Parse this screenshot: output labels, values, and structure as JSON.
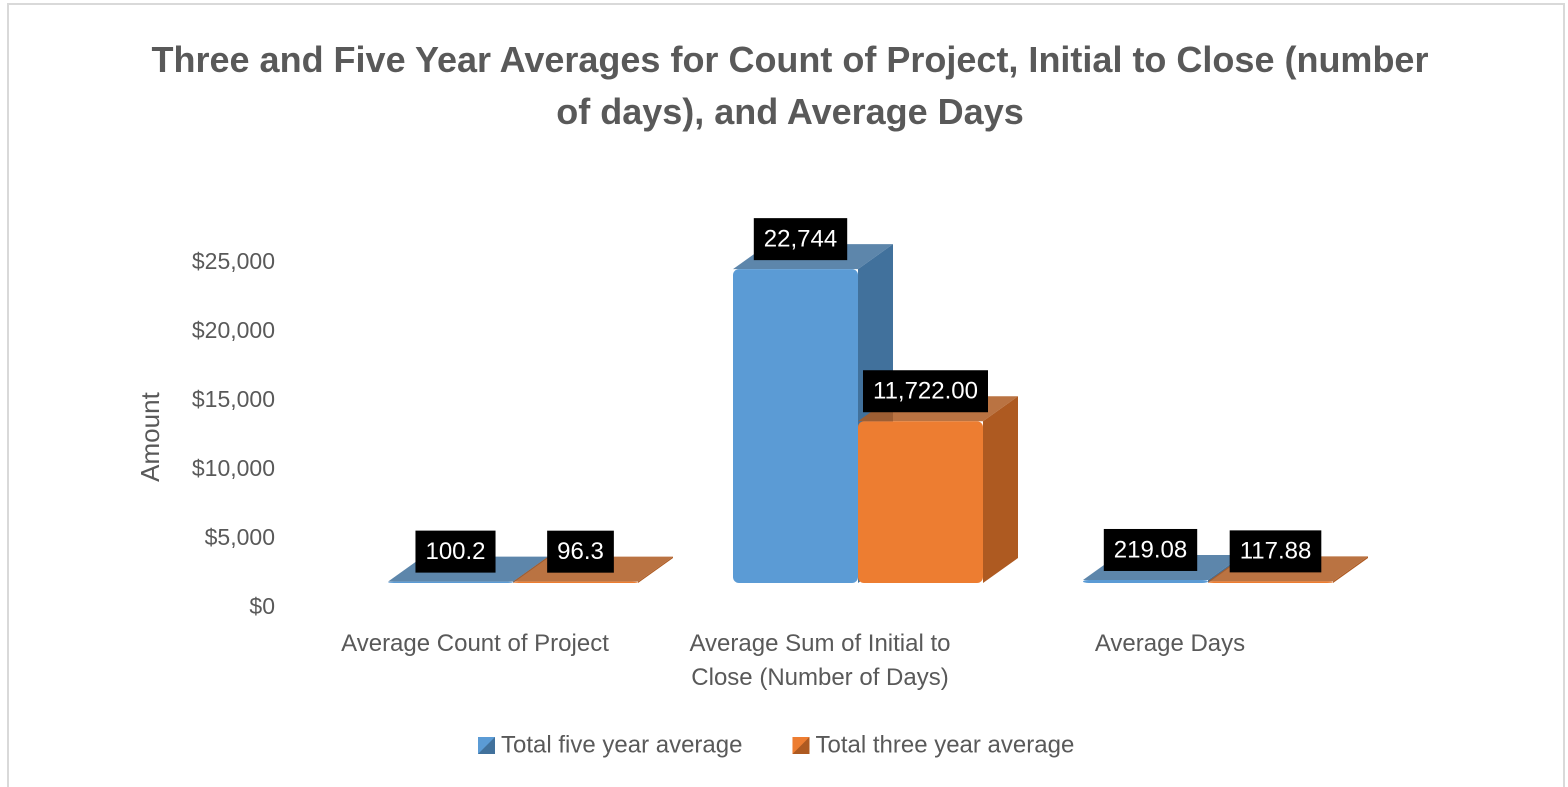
{
  "chart_data": {
    "type": "bar3d",
    "title": "Three and Five Year Averages for Count of Project, Initial to Close (number of days), and Average Days",
    "categories": [
      "Average Count of Project",
      "Average Sum of Initial to Close (Number of Days)",
      "Average Days"
    ],
    "y_label": "Amount",
    "ylim": [
      0,
      25000
    ],
    "yticks": [
      {
        "value": 0,
        "label": "$0"
      },
      {
        "value": 5000,
        "label": "$5,000"
      },
      {
        "value": 10000,
        "label": "$10,000"
      },
      {
        "value": 15000,
        "label": "$15,000"
      },
      {
        "value": 20000,
        "label": "$20,000"
      },
      {
        "value": 25000,
        "label": "$25,000"
      }
    ],
    "legend": "bottom",
    "series": [
      {
        "name": "Total five year average",
        "color": "#5b9bd5",
        "side_color": "#41719c",
        "values": [
          100.2,
          22744,
          219.08
        ],
        "value_labels": [
          "100.2",
          "22,744",
          "219.08"
        ]
      },
      {
        "name": "Total three year average",
        "color": "#ed7d31",
        "side_color": "#ae5a21",
        "values": [
          96.3,
          11722,
          117.88
        ],
        "value_labels": [
          "96.3",
          "11,722.00",
          "117.88"
        ]
      }
    ]
  }
}
